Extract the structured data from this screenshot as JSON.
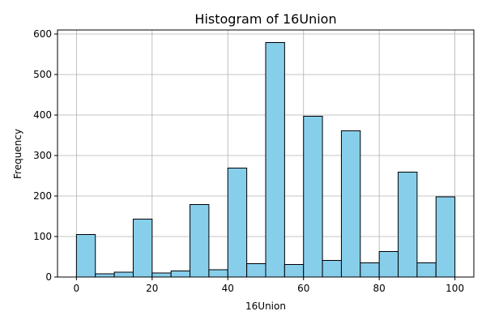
{
  "chart_data": {
    "type": "bar",
    "title": "Histogram of 16Union",
    "xlabel": "16Union",
    "ylabel": "Frequency",
    "bar_color": "#87ceeb",
    "edge_color": "#000000",
    "grid": true,
    "xlim": [
      -5,
      105
    ],
    "ylim": [
      0,
      610
    ],
    "xticks": [
      0,
      20,
      40,
      60,
      80,
      100
    ],
    "yticks": [
      0,
      100,
      200,
      300,
      400,
      500,
      600
    ],
    "bin_edges": [
      0,
      5,
      10,
      15,
      20,
      25,
      30,
      35,
      40,
      45,
      50,
      55,
      60,
      65,
      70,
      75,
      80,
      85,
      90,
      95,
      100
    ],
    "values": [
      105,
      8,
      12,
      143,
      10,
      15,
      179,
      18,
      269,
      33,
      579,
      31,
      397,
      41,
      361,
      35,
      63,
      259,
      35,
      198
    ]
  }
}
